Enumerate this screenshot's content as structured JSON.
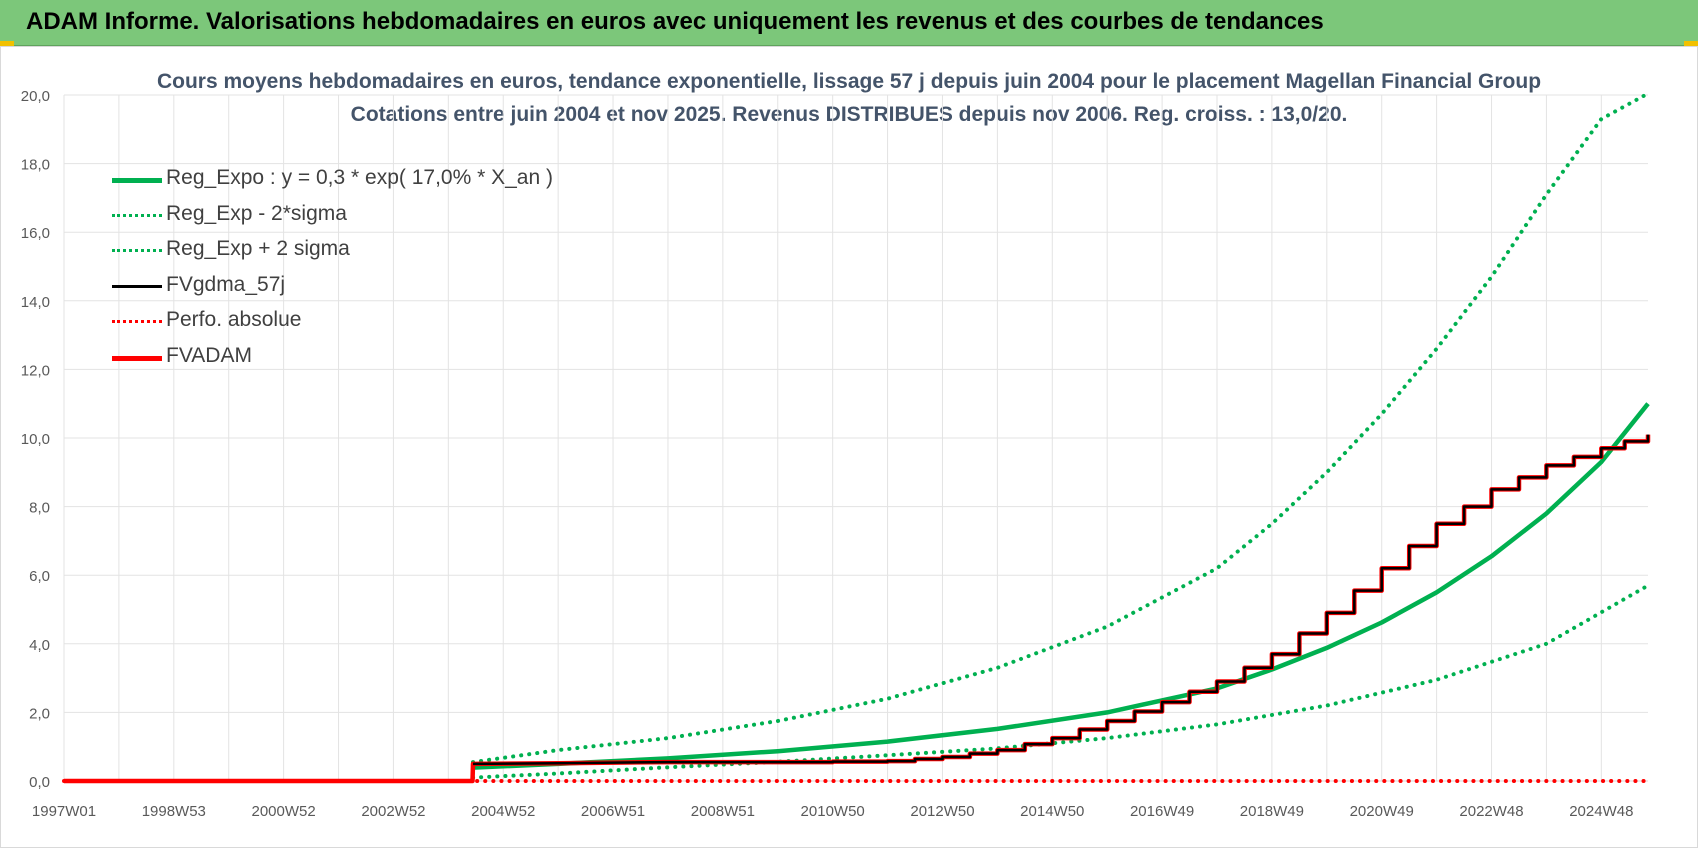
{
  "banner": {
    "title": "ADAM Informe. Valorisations hebdomadaires en euros avec uniquement les revenus et des courbes de tendances"
  },
  "colors": {
    "banner_bg": "#7cc77a",
    "title_text": "#44546a",
    "reg_green": "#00b050",
    "black": "#000000",
    "red": "#ff0000",
    "grid": "#e3e3e3"
  },
  "chart_data": {
    "type": "line",
    "title": "Cours moyens hebdomadaires en euros, tendance exponentielle, lissage 57 j depuis juin 2004 pour le placement Magellan Financial Group",
    "subtitle": "Cotations entre juin 2004 et nov 2025. Revenus DISTRIBUES depuis nov 2006. Reg. croiss. : 13,0/20.",
    "xlabel": "",
    "ylabel": "",
    "ylim": [
      0,
      20
    ],
    "xlim": [
      1997.0,
      2025.85
    ],
    "x_tick_labels": [
      "1997W01",
      "1998W53",
      "2000W52",
      "2002W52",
      "2004W52",
      "2006W51",
      "2008W51",
      "2010W50",
      "2012W50",
      "2014W50",
      "2016W49",
      "2018W49",
      "2020W49",
      "2022W48",
      "2024W48"
    ],
    "x_tick_years": [
      1997.0,
      1999.0,
      2001.0,
      2003.0,
      2005.0,
      2007.0,
      2009.0,
      2011.0,
      2013.0,
      2015.0,
      2017.0,
      2019.0,
      2021.0,
      2023.0,
      2025.0
    ],
    "y_tick_labels": [
      "0,0",
      "2,0",
      "4,0",
      "6,0",
      "8,0",
      "10,0",
      "12,0",
      "14,0",
      "16,0",
      "18,0",
      "20,0"
    ],
    "grid": true,
    "legend_position": "top-left",
    "series": [
      {
        "name": "Reg_Expo : y = 0,3 * exp( 17,0% *  X_an )",
        "style": "solid",
        "color": "#00b050",
        "x": [
          2004.45,
          2006,
          2008,
          2010,
          2012,
          2014,
          2016,
          2018,
          2019,
          2020,
          2021,
          2022,
          2023,
          2024,
          2025,
          2025.85
        ],
        "values": [
          0.39,
          0.5,
          0.66,
          0.87,
          1.15,
          1.52,
          2.0,
          2.7,
          3.25,
          3.88,
          4.62,
          5.5,
          6.55,
          7.8,
          9.3,
          11.0
        ]
      },
      {
        "name": "Reg_Exp - 2*sigma",
        "style": "dotted",
        "color": "#00b050",
        "x": [
          2004.45,
          2006,
          2008,
          2010,
          2012,
          2014,
          2016,
          2018,
          2020,
          2022,
          2024,
          2025.85
        ],
        "values": [
          0.1,
          0.22,
          0.4,
          0.56,
          0.75,
          0.95,
          1.25,
          1.65,
          2.2,
          2.95,
          4.0,
          5.7
        ]
      },
      {
        "name": "Reg_Exp + 2 sigma",
        "style": "dotted",
        "color": "#00b050",
        "x": [
          2004.45,
          2006,
          2008,
          2010,
          2012,
          2014,
          2016,
          2018,
          2019,
          2020,
          2021,
          2022,
          2023,
          2024,
          2025,
          2025.8
        ],
        "values": [
          0.55,
          0.9,
          1.25,
          1.75,
          2.4,
          3.3,
          4.5,
          6.2,
          7.5,
          9.0,
          10.7,
          12.6,
          14.7,
          17.1,
          19.3,
          20.0
        ]
      },
      {
        "name": "FVgdma_57j",
        "style": "solid",
        "color": "#000000",
        "x": [
          2004.45,
          2006,
          2008,
          2010,
          2012,
          2013,
          2014,
          2015,
          2016,
          2017,
          2018,
          2019,
          2020,
          2021,
          2022,
          2023,
          2024,
          2025,
          2025.85
        ],
        "values": [
          0.5,
          0.52,
          0.55,
          0.55,
          0.58,
          0.7,
          0.9,
          1.25,
          1.75,
          2.3,
          2.9,
          3.7,
          4.9,
          6.2,
          7.5,
          8.5,
          9.2,
          9.7,
          10.1
        ]
      },
      {
        "name": "Perfo. absolue",
        "style": "dotted",
        "color": "#ff0000",
        "x": [
          1997.0,
          2025.85
        ],
        "values": [
          0.0,
          0.0
        ]
      },
      {
        "name": "FVADAM",
        "style": "solid",
        "color": "#ff0000",
        "x": [
          1997.0,
          2004.44,
          2004.45,
          2006,
          2008,
          2010,
          2012,
          2013,
          2014,
          2015,
          2016,
          2017,
          2018,
          2019,
          2020,
          2021,
          2022,
          2023,
          2024,
          2025,
          2025.85
        ],
        "values": [
          0.0,
          0.0,
          0.5,
          0.52,
          0.55,
          0.55,
          0.58,
          0.7,
          0.9,
          1.25,
          1.75,
          2.3,
          2.9,
          3.7,
          4.9,
          6.2,
          7.5,
          8.5,
          9.2,
          9.7,
          10.1
        ]
      }
    ]
  }
}
